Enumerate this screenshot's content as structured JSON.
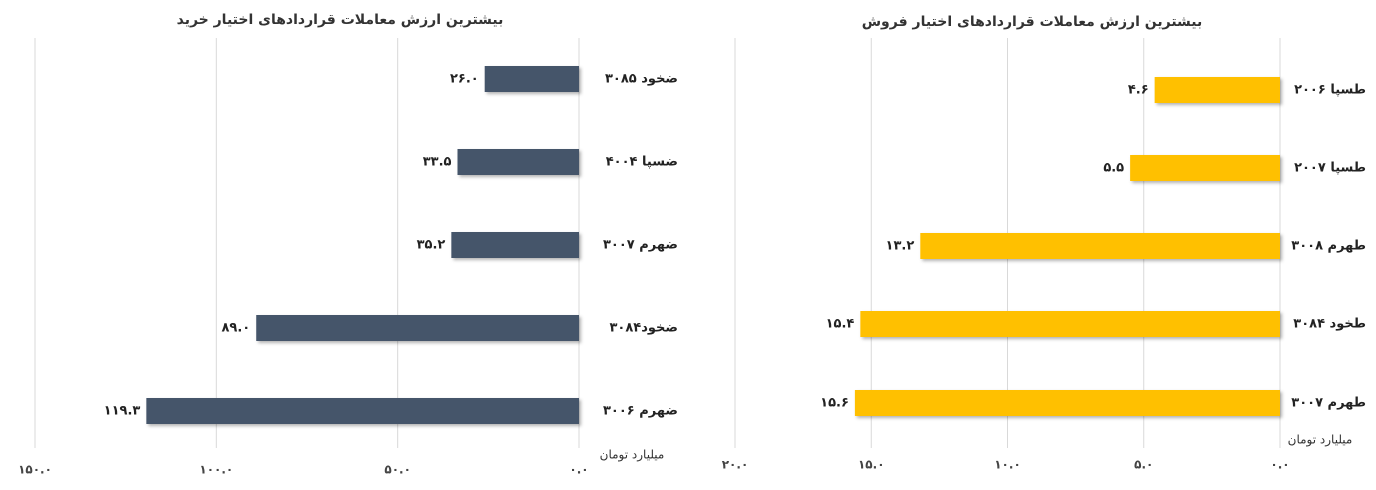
{
  "chart_data": [
    {
      "type": "bar",
      "title": "بیشترین ارزش معاملات قراردادهای اختیار خرید",
      "x_label": "میلیارد تومان",
      "categories": [
        "ضخود ۳۰۸۵",
        "ضسپا ۴۰۰۴",
        "ضهرم ۳۰۰۷",
        "ضخود۳۰۸۴",
        "ضهرم ۳۰۰۶"
      ],
      "values": [
        26.0,
        33.5,
        35.2,
        89.0,
        119.3
      ],
      "value_labels": [
        "۲۶.۰",
        "۳۳.۵",
        "۳۵.۲",
        "۸۹.۰",
        "۱۱۹.۳"
      ],
      "color": "#44546a",
      "xlim": [
        0,
        150
      ],
      "xticks": [
        {
          "value": 0,
          "label": "۰.۰"
        },
        {
          "value": 50,
          "label": "۵۰.۰"
        },
        {
          "value": 100,
          "label": "۱۰۰.۰"
        },
        {
          "value": 150,
          "label": "۱۵۰.۰"
        }
      ],
      "grid": true,
      "reversed": true
    },
    {
      "type": "bar",
      "title": "بیشترین ارزش معاملات قراردادهای اختیار فروش",
      "x_label": "میلیارد تومان",
      "categories": [
        "طسپا ۲۰۰۶",
        "طسپا ۲۰۰۷",
        "طهرم ۳۰۰۸",
        "طخود ۳۰۸۴",
        "طهرم ۳۰۰۷"
      ],
      "values": [
        4.6,
        5.5,
        13.2,
        15.4,
        15.6
      ],
      "value_labels": [
        "۴.۶",
        "۵.۵",
        "۱۳.۲",
        "۱۵.۴",
        "۱۵.۶"
      ],
      "color": "#ffc000",
      "xlim": [
        0,
        20
      ],
      "xticks": [
        {
          "value": 0,
          "label": "۰.۰"
        },
        {
          "value": 5,
          "label": "۵.۰"
        },
        {
          "value": 10,
          "label": "۱۰.۰"
        },
        {
          "value": 15,
          "label": "۱۵.۰"
        },
        {
          "value": 20,
          "label": "۲۰.۰"
        }
      ],
      "grid": true,
      "reversed": true
    }
  ]
}
